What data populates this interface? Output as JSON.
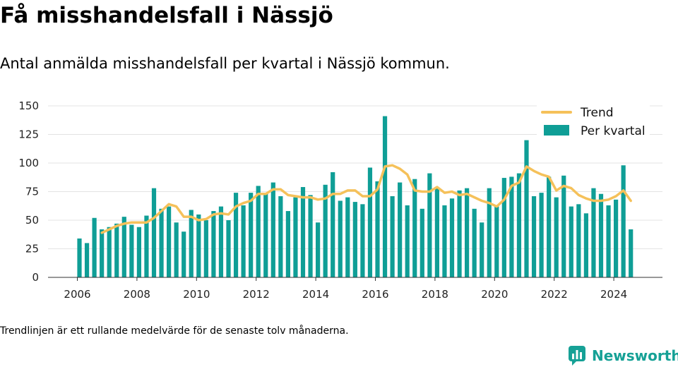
{
  "title": "Få misshandelsfall i Nässjö",
  "subtitle": "Antal anmälda misshandelsfall per kvartal i Nässjö kommun.",
  "footnote": "Trendlinjen är ett rullande medelvärde för de senaste tolv månaderna.",
  "brand": {
    "name": "Newsworthy",
    "icon": "newsworthy-logo-icon",
    "color": "#16a196"
  },
  "colors": {
    "bar": "#0f9e96",
    "trend": "#f5c15a",
    "grid": "#e3e3e3"
  },
  "chart_data": {
    "type": "bar",
    "x_ticks": [
      "2006",
      "2008",
      "2010",
      "2012",
      "2014",
      "2016",
      "2018",
      "2020",
      "2022",
      "2024"
    ],
    "y_ticks": [
      "0",
      "25",
      "50",
      "75",
      "100",
      "125",
      "150"
    ],
    "ylim": [
      0,
      150
    ],
    "grid": true,
    "legend_position": "top-right",
    "legend": [
      "Trend",
      "Per kvartal"
    ],
    "x_start": "2006 Q1",
    "series": [
      {
        "name": "Per kvartal",
        "type": "bar",
        "values": [
          34,
          30,
          52,
          42,
          44,
          47,
          53,
          46,
          44,
          54,
          78,
          60,
          62,
          48,
          40,
          59,
          55,
          50,
          58,
          62,
          50,
          74,
          63,
          74,
          80,
          74,
          83,
          71,
          58,
          70,
          79,
          72,
          48,
          81,
          92,
          67,
          70,
          66,
          64,
          96,
          84,
          141,
          71,
          83,
          63,
          86,
          60,
          91,
          78,
          63,
          69,
          76,
          78,
          60,
          48,
          78,
          62,
          87,
          88,
          91,
          120,
          71,
          74,
          88,
          70,
          89,
          62,
          64,
          56,
          78,
          73,
          63,
          68,
          98,
          42
        ]
      },
      {
        "name": "Trend",
        "type": "line",
        "values": [
          null,
          null,
          null,
          39,
          42,
          45,
          47,
          48,
          48,
          48,
          52,
          58,
          64,
          62,
          53,
          53,
          50,
          51,
          55,
          56,
          55,
          62,
          65,
          67,
          73,
          73,
          77,
          77,
          72,
          71,
          70,
          70,
          68,
          69,
          73,
          73,
          76,
          76,
          71,
          71,
          77,
          97,
          98,
          95,
          90,
          76,
          75,
          75,
          79,
          74,
          75,
          72,
          73,
          70,
          67,
          65,
          62,
          68,
          80,
          83,
          97,
          93,
          90,
          88,
          76,
          80,
          78,
          72,
          69,
          67,
          67,
          68,
          71,
          76,
          67
        ]
      }
    ]
  }
}
